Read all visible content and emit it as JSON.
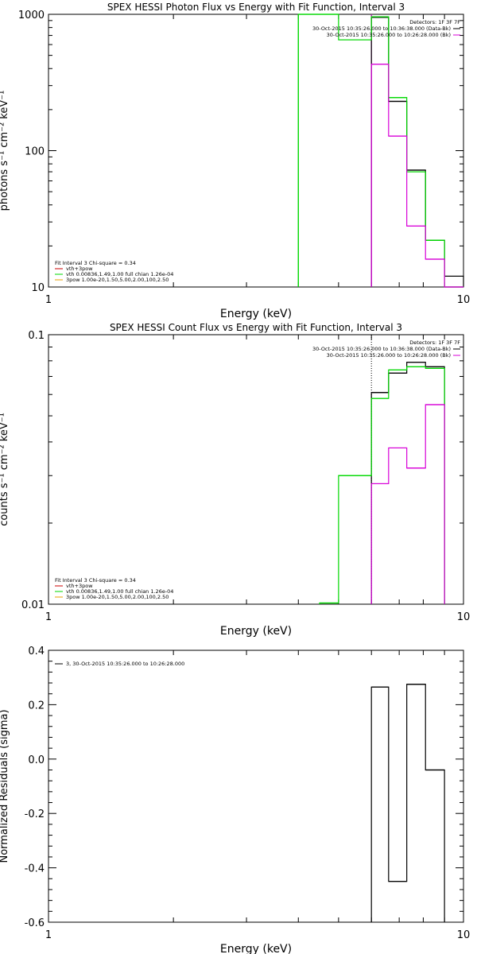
{
  "chart_data": [
    {
      "type": "line",
      "step": true,
      "title": "SPEX HESSI Photon Flux vs Energy with Fit Function, Interval 3",
      "xlabel": "Energy (keV)",
      "ylabel": "photons s⁻¹ cm⁻² keV⁻¹",
      "xscale": "log",
      "yscale": "log",
      "xlim": [
        1,
        10
      ],
      "ylim": [
        10,
        1000
      ],
      "x_ticks": [
        1,
        10
      ],
      "y_ticks": [
        10,
        100,
        1000
      ],
      "legend_right": {
        "lines": [
          "Detectors: 1F 3F 7F",
          "30-Oct-2015 10:35:26.000 to 10:36:38.000 (Data-Bk)",
          "30-Oct-2015 10:35:26.000 to 10:26:28.000 (Bk)"
        ],
        "colors": [
          "#000000",
          "#000000",
          "#d800d8"
        ]
      },
      "legend_left": {
        "lines": [
          "Fit Interval 3   Chi-square = 0.34",
          "vth+3pow",
          "vth 0.00836,1.49,1.00  full chian 1.26e-04",
          "3pow 1.00e-20,1.50,5.00,2.00,100,2.50"
        ],
        "colors": [
          "#000000",
          "#cc0000",
          "#00d800",
          "#e8a000"
        ]
      },
      "vline": {
        "x": 6.0,
        "color": "#d800d8"
      },
      "series": [
        {
          "name": "Data-Bk",
          "color": "#000000",
          "steps": [
            [
              6.0,
              6.6,
              950
            ],
            [
              6.6,
              7.3,
              230
            ],
            [
              7.3,
              8.1,
              72
            ],
            [
              8.1,
              9.0,
              22
            ],
            [
              9.0,
              10.0,
              12
            ]
          ]
        },
        {
          "name": "vth+3pow",
          "color": "#00d800",
          "steps": [
            [
              4.0,
              4.5,
              1000
            ],
            [
              4.5,
              5.0,
              1000
            ],
            [
              5.0,
              5.45,
              650
            ],
            [
              5.45,
              6.0,
              650
            ],
            [
              6.0,
              6.6,
              960
            ],
            [
              6.6,
              7.3,
              245
            ],
            [
              7.3,
              8.1,
              70
            ],
            [
              8.1,
              9.0,
              22
            ],
            [
              9.0,
              10.0,
              10
            ]
          ],
          "vertical_edges": [
            4.0
          ]
        },
        {
          "name": "Bk",
          "color": "#d800d8",
          "steps": [
            [
              6.0,
              6.6,
              430
            ],
            [
              6.6,
              7.3,
              128
            ],
            [
              7.3,
              8.1,
              28
            ],
            [
              8.1,
              9.0,
              16
            ],
            [
              9.0,
              10.0,
              10
            ]
          ]
        }
      ]
    },
    {
      "type": "line",
      "step": true,
      "title": "SPEX HESSI Count Flux vs Energy with Fit Function, Interval 3",
      "xlabel": "Energy (keV)",
      "ylabel": "counts s⁻¹ cm⁻² keV⁻¹",
      "xscale": "log",
      "yscale": "log",
      "xlim": [
        1,
        10
      ],
      "ylim": [
        0.01,
        0.1
      ],
      "x_ticks": [
        1,
        10
      ],
      "y_ticks": [
        0.01,
        0.1
      ],
      "legend_right": {
        "lines": [
          "Detectors: 1F 3F 7F",
          "30-Oct-2015 10:35:26.000 to 10:36:38.000 (Data-Bk)",
          "30-Oct-2015 10:35:26.000 to 10:26:28.000 (Bk)"
        ],
        "colors": [
          "#000000",
          "#000000",
          "#d800d8"
        ]
      },
      "legend_left": {
        "lines": [
          "Fit Interval 3   Chi-square = 0.34",
          "vth+3pow",
          "vth 0.00836,1.49,1.00  full chian 1.26e-04",
          "3pow 1.00e-20,1.50,5.00,2.00,100,2.50"
        ],
        "colors": [
          "#000000",
          "#cc0000",
          "#00d800",
          "#e8a000"
        ]
      },
      "vline": {
        "x": 6.0,
        "color": "#000000",
        "dotted": true
      },
      "series": [
        {
          "name": "Data-Bk",
          "color": "#000000",
          "steps": [
            [
              6.0,
              6.6,
              0.061
            ],
            [
              6.6,
              7.3,
              0.072
            ],
            [
              7.3,
              8.1,
              0.079
            ],
            [
              8.1,
              9.0,
              0.076
            ]
          ]
        },
        {
          "name": "vth+3pow",
          "color": "#00d800",
          "steps": [
            [
              4.5,
              5.0,
              0.0101
            ],
            [
              5.0,
              5.45,
              0.03
            ],
            [
              5.45,
              6.0,
              0.03
            ],
            [
              6.0,
              6.6,
              0.058
            ],
            [
              6.6,
              7.3,
              0.074
            ],
            [
              7.3,
              8.1,
              0.076
            ],
            [
              8.1,
              9.0,
              0.075
            ]
          ]
        },
        {
          "name": "Bk",
          "color": "#d800d8",
          "steps": [
            [
              6.0,
              6.6,
              0.028
            ],
            [
              6.6,
              7.3,
              0.038
            ],
            [
              7.3,
              8.1,
              0.032
            ],
            [
              8.1,
              9.0,
              0.055
            ]
          ]
        }
      ]
    },
    {
      "type": "line",
      "step": true,
      "title": "",
      "xlabel": "Energy (keV)",
      "ylabel": "Normalized Residuals (sigma)",
      "xscale": "log",
      "yscale": "linear",
      "xlim": [
        1,
        10
      ],
      "ylim": [
        -0.6,
        0.4
      ],
      "x_ticks": [
        1,
        10
      ],
      "y_ticks": [
        -0.6,
        -0.4,
        -0.2,
        0.0,
        0.2,
        0.4
      ],
      "y_tick_labels": [
        "-0.6",
        "-0.4",
        "-0.2",
        "0.0",
        "0.2",
        "0.4"
      ],
      "legend_left": {
        "lines": [
          "3, 30-Oct-2015 10:35:26.000 to 10:26:28.000"
        ],
        "colors": [
          "#000000"
        ]
      },
      "series": [
        {
          "name": "",
          "color": "#000000",
          "steps": [
            [
              6.0,
              6.6,
              0.265
            ],
            [
              6.6,
              7.3,
              -0.45
            ],
            [
              7.3,
              8.1,
              0.275
            ],
            [
              8.1,
              9.0,
              -0.04
            ]
          ]
        }
      ]
    }
  ]
}
